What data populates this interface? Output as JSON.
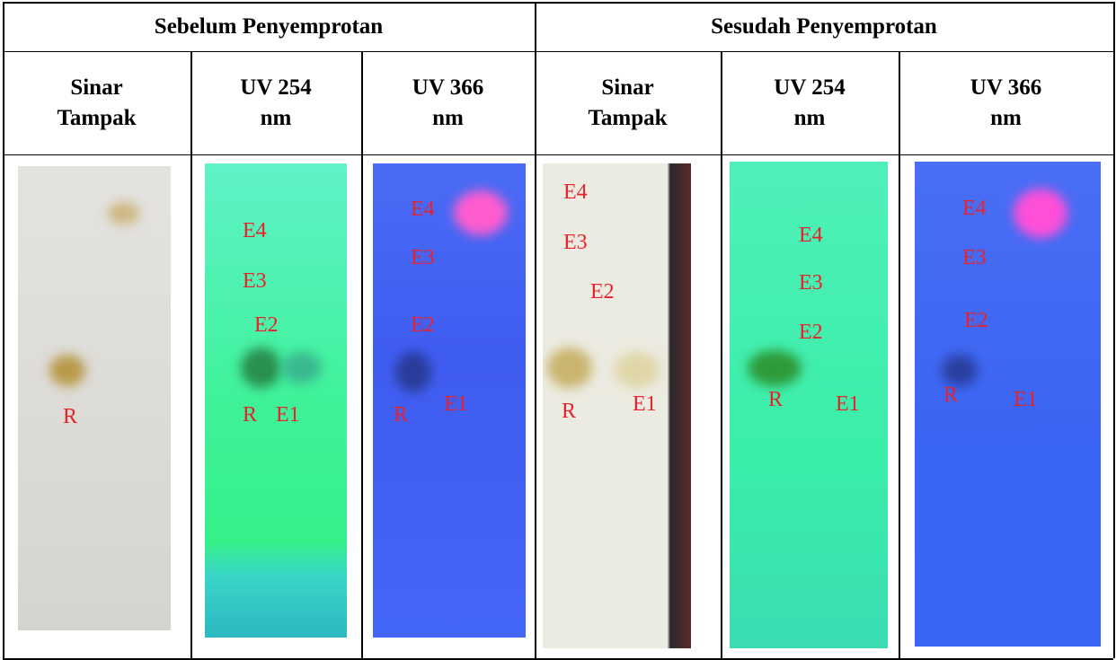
{
  "table": {
    "groups": [
      "Sebelum Penyemprotan",
      "Sesudah Penyemprotan"
    ],
    "columns": [
      "Sinar Tampak",
      "UV 254 nm",
      "UV 366 nm",
      "Sinar Tampak",
      "UV 254 nm",
      "UV 366 nm"
    ],
    "plates": [
      {
        "labels": [
          "R"
        ]
      },
      {
        "labels": [
          "E4",
          "E3",
          "E2",
          "R",
          "E1"
        ]
      },
      {
        "labels": [
          "E4",
          "E3",
          "E2",
          "R",
          "E1"
        ]
      },
      {
        "labels": [
          "E4",
          "E3",
          "E2",
          "R",
          "E1"
        ]
      },
      {
        "labels": [
          "E4",
          "E3",
          "E2",
          "R",
          "E1"
        ]
      },
      {
        "labels": [
          "E4",
          "E3",
          "E2",
          "R",
          "E1"
        ]
      }
    ]
  }
}
